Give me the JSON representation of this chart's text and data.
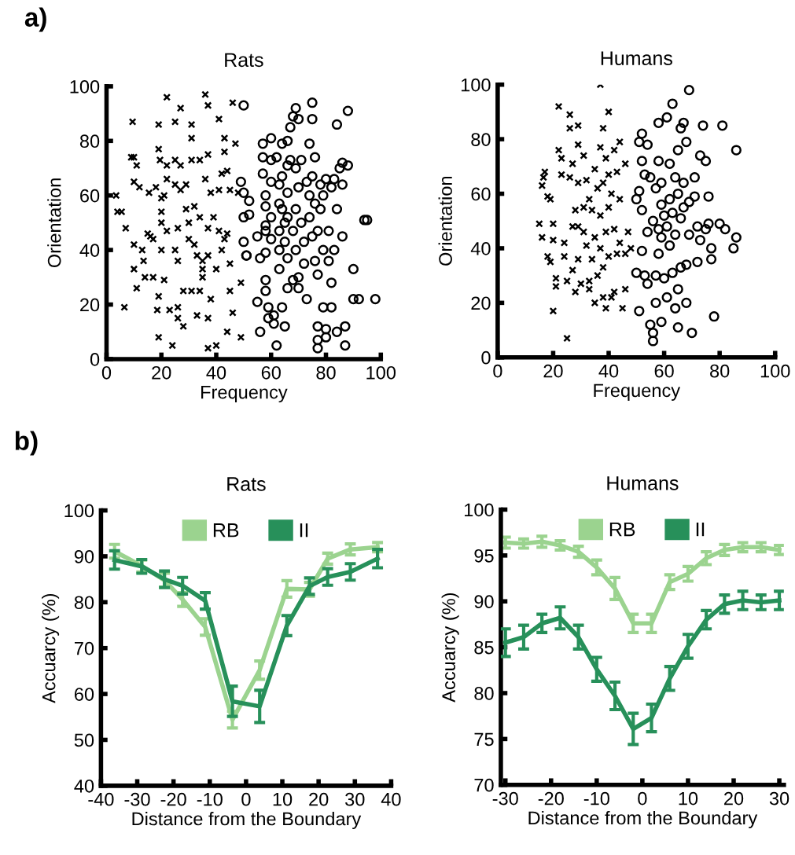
{
  "chart_data": [
    {
      "type": "scatter",
      "title": "Rats",
      "xlabel": "Frequency",
      "ylabel": "Orientation",
      "xlim": [
        0,
        100
      ],
      "ylim": [
        0,
        100
      ],
      "xticks": [
        0,
        20,
        40,
        60,
        80,
        100
      ],
      "yticks": [
        0,
        20,
        40,
        60,
        80,
        100
      ],
      "grid": false,
      "legend": false,
      "annotations": [
        "a)"
      ],
      "series": [
        {
          "color": "#000000",
          "marker": "cross",
          "x": [
            3.5,
            4,
            5.5,
            7,
            6.5,
            9.5,
            9,
            10,
            11,
            10,
            12,
            10,
            10,
            11,
            13,
            13.5,
            14,
            15,
            15.5,
            16,
            17,
            17,
            18,
            19,
            18.5,
            19,
            19,
            19,
            19.5,
            20,
            20,
            20,
            20,
            21,
            21,
            22,
            22,
            22,
            22,
            23,
            24,
            25,
            25,
            25,
            26,
            26,
            26,
            26,
            27,
            25,
            27,
            27,
            28,
            28,
            29,
            29,
            30,
            30,
            31,
            31,
            31,
            31,
            32,
            32,
            33,
            33,
            34,
            34,
            35,
            35,
            35,
            34,
            36,
            37,
            37,
            36,
            37,
            37,
            38,
            38,
            37,
            37,
            39,
            40,
            40,
            41,
            41,
            41,
            42,
            42,
            43,
            43,
            43,
            44,
            44,
            44,
            45,
            45,
            45,
            46,
            46,
            47,
            48,
            49,
            49
          ],
          "values": [
            60,
            54,
            54,
            48,
            19,
            87,
            74,
            74,
            71,
            65,
            63,
            42,
            33,
            26,
            40,
            36,
            30,
            46,
            61,
            45,
            44,
            30,
            63,
            23,
            18,
            8,
            86,
            77,
            73,
            59,
            54,
            50,
            40,
            29,
            60,
            71,
            66,
            47,
            96,
            18,
            5,
            73,
            64,
            40,
            48,
            19,
            15,
            36,
            92,
            87,
            62,
            71,
            25,
            12,
            64,
            55,
            50,
            44,
            81,
            86,
            73,
            25,
            56,
            42,
            38,
            16,
            73,
            52,
            30,
            36,
            33,
            25,
            97,
            93,
            75,
            66,
            48,
            38,
            61,
            22,
            15,
            4,
            52,
            33,
            5,
            62,
            88,
            47,
            68,
            40,
            44,
            76,
            81,
            46,
            69,
            10,
            62,
            35,
            25,
            17,
            94,
            79,
            61,
            28,
            8
          ]
        },
        {
          "color": "#000000",
          "marker": "circle",
          "x": [
            50,
            49,
            50,
            50,
            50,
            51,
            52,
            52,
            51,
            55,
            56,
            55,
            56,
            57,
            57,
            57,
            58,
            58,
            58,
            58,
            58,
            58,
            58,
            59,
            59,
            60,
            60,
            60,
            60,
            60,
            61,
            61,
            62,
            62,
            63,
            63,
            63,
            63,
            63,
            64,
            64,
            64,
            64,
            65,
            65,
            65,
            66,
            66,
            66,
            66,
            66,
            66,
            67,
            67,
            68,
            68,
            68,
            69,
            69,
            69,
            69,
            70,
            70,
            70,
            70,
            71,
            71,
            72,
            72,
            73,
            73,
            74,
            74,
            74,
            75,
            75,
            75,
            75,
            76,
            76,
            76,
            77,
            77,
            77,
            77,
            77,
            78,
            78,
            79,
            79,
            79,
            80,
            80,
            80,
            81,
            81,
            82,
            82,
            82,
            83,
            83,
            84,
            84,
            84,
            85,
            86,
            86,
            86,
            87,
            87,
            88,
            88,
            90,
            90,
            92,
            94,
            95,
            98
          ],
          "values": [
            93,
            65,
            61,
            52,
            43,
            38,
            58,
            53,
            38,
            45,
            37,
            21,
            10,
            79,
            68,
            74,
            60,
            56,
            49,
            47,
            39,
            29,
            25,
            19,
            15,
            81,
            73,
            65,
            52,
            44,
            16,
            13,
            5,
            74,
            64,
            57,
            47,
            40,
            33,
            79,
            67,
            55,
            19,
            12,
            50,
            43,
            80,
            71,
            61,
            52,
            37,
            26,
            85,
            73,
            89,
            47,
            29,
            92,
            70,
            55,
            40,
            88,
            63,
            30,
            26,
            73,
            50,
            43,
            35,
            65,
            22,
            79,
            60,
            52,
            94,
            88,
            67,
            45,
            74,
            36,
            57,
            47,
            31,
            12,
            7,
            4,
            64,
            55,
            19,
            40,
            60,
            66,
            11,
            8,
            36,
            47,
            63,
            28,
            19,
            66,
            40,
            86,
            10,
            55,
            70,
            64,
            72,
            45,
            12,
            5,
            91,
            71,
            33,
            22,
            22,
            51,
            51,
            22
          ]
        }
      ]
    },
    {
      "type": "scatter",
      "title": "Humans",
      "xlabel": "Frequency",
      "ylabel": "Orientation",
      "xlim": [
        0,
        100
      ],
      "ylim": [
        0,
        100
      ],
      "xticks": [
        0,
        20,
        40,
        60,
        80,
        100
      ],
      "yticks": [
        0,
        20,
        40,
        60,
        80,
        100
      ],
      "grid": false,
      "legend": false,
      "series": [
        {
          "color": "#000000",
          "marker": "cross",
          "x": [
            15,
            16,
            16,
            16.5,
            17,
            18,
            19,
            20,
            20,
            18,
            19,
            20,
            21,
            21,
            22,
            22,
            23,
            23,
            24,
            24,
            25,
            25,
            26,
            26,
            26,
            27,
            27,
            27,
            28,
            28,
            29,
            29,
            29,
            29,
            29,
            30,
            31,
            31,
            31,
            32,
            32,
            33,
            33,
            33,
            34,
            34,
            35,
            35,
            35,
            36,
            36,
            37,
            37,
            37,
            37,
            38,
            38,
            38,
            38,
            39,
            39,
            39,
            40,
            40,
            40,
            40,
            41,
            41,
            42,
            42,
            42,
            43,
            43,
            44,
            44,
            44,
            45,
            46,
            46,
            46,
            47,
            48
          ],
          "values": [
            49,
            44,
            63,
            66,
            68,
            59,
            58,
            49,
            43,
            37,
            35,
            17,
            29,
            26,
            76,
            92,
            73,
            67,
            42,
            37,
            7,
            28,
            89,
            84,
            66,
            71,
            48,
            32,
            54,
            24,
            85,
            78,
            64,
            48,
            36,
            27,
            74,
            55,
            46,
            65,
            41,
            58,
            28,
            25,
            54,
            36,
            69,
            44,
            20,
            62,
            30,
            100,
            77,
            52,
            40,
            84,
            64,
            33,
            22,
            73,
            46,
            18,
            90,
            67,
            55,
            37,
            60,
            22,
            76,
            47,
            24,
            68,
            38,
            79,
            58,
            42,
            18,
            71,
            25,
            38,
            46,
            40
          ]
        },
        {
          "color": "#000000",
          "marker": "circle",
          "x": [
            50,
            50,
            51,
            51,
            51,
            52,
            52,
            52,
            52,
            53,
            53,
            54,
            54,
            54,
            55,
            55,
            56,
            56,
            56,
            57,
            57,
            57,
            58,
            58,
            58,
            58,
            59,
            59,
            59,
            59,
            60,
            60,
            61,
            61,
            61,
            62,
            62,
            62,
            63,
            63,
            63,
            64,
            64,
            64,
            65,
            65,
            65,
            65,
            66,
            66,
            66,
            67,
            67,
            67,
            68,
            68,
            68,
            69,
            69,
            69,
            70,
            71,
            71,
            72,
            72,
            73,
            73,
            74,
            75,
            75,
            76,
            76,
            77,
            77,
            78,
            80,
            81,
            82,
            86,
            86,
            85
          ],
          "values": [
            58,
            31,
            61,
            17,
            79,
            82,
            72,
            54,
            39,
            67,
            30,
            78,
            46,
            27,
            66,
            12,
            50,
            9,
            6,
            62,
            30,
            20,
            86,
            72,
            47,
            38,
            64,
            56,
            44,
            13,
            52,
            29,
            88,
            48,
            22,
            71,
            58,
            41,
            93,
            53,
            31,
            66,
            45,
            18,
            76,
            60,
            25,
            11,
            84,
            51,
            33,
            86,
            64,
            55,
            79,
            34,
            20,
            57,
            98,
            45,
            9,
            66,
            59,
            48,
            35,
            74,
            43,
            85,
            72,
            47,
            49,
            59,
            40,
            36,
            15,
            49,
            85,
            47,
            76,
            44,
            40
          ]
        }
      ]
    },
    {
      "type": "line",
      "title": "Rats",
      "xlabel": "Distance from the Boundary",
      "ylabel": "Accuarcy (%)",
      "xlim": [
        -40,
        40
      ],
      "ylim": [
        40,
        100
      ],
      "xticks": [
        -40,
        -30,
        -20,
        -10,
        0,
        10,
        20,
        30,
        40
      ],
      "yticks": [
        40,
        50,
        60,
        70,
        80,
        90,
        100
      ],
      "grid": false,
      "legend": "top",
      "annotations": [
        "b)"
      ],
      "x": [
        -36.25,
        -28.75,
        -22.5,
        -17.5,
        -11.25,
        -3.75,
        3.75,
        11.25,
        17.5,
        22.5,
        28.75,
        36.25
      ],
      "series": [
        {
          "name": "RB",
          "color": "#9bd38f",
          "values": [
            91.1,
            87.9,
            84.8,
            80.6,
            74.6,
            54.4,
            65.2,
            82.9,
            82.8,
            89.5,
            91.5,
            92
          ],
          "errors": [
            1.5,
            1.3,
            1.5,
            1.5,
            1.8,
            1.8,
            2.0,
            1.8,
            1.5,
            1.2,
            1.2,
            1.0
          ]
        },
        {
          "name": "II",
          "color": "#27905a",
          "values": [
            89.2,
            87.8,
            85,
            83.6,
            80.3,
            58.4,
            57.3,
            74.9,
            83.5,
            85.5,
            86.6,
            89.5
          ],
          "errors": [
            2,
            1.5,
            1.8,
            1.8,
            1.8,
            3.3,
            3.5,
            2.2,
            1.8,
            1.8,
            1.8,
            2.0
          ]
        }
      ]
    },
    {
      "type": "line",
      "title": "Humans",
      "xlabel": "Distance from the Boundary",
      "ylabel": "Accuarcy (%)",
      "xlim": [
        -31,
        31
      ],
      "ylim": [
        70,
        100
      ],
      "xticks": [
        -30,
        -20,
        -10,
        0,
        10,
        20,
        30
      ],
      "yticks": [
        70,
        75,
        80,
        85,
        90,
        95,
        100
      ],
      "grid": false,
      "legend": "top",
      "x": [
        -30,
        -26,
        -22,
        -18,
        -14,
        -10,
        -6,
        -2,
        2,
        6,
        10,
        14,
        18,
        22,
        26,
        30
      ],
      "series": [
        {
          "name": "RB",
          "color": "#9bd38f",
          "values": [
            96.4,
            96.3,
            96.5,
            96.1,
            95.4,
            93.7,
            91.4,
            87.6,
            87.6,
            92.1,
            93.0,
            94.7,
            95.6,
            95.9,
            95.9,
            95.6
          ],
          "errors": [
            0.6,
            0.5,
            0.6,
            0.5,
            0.6,
            0.8,
            1.2,
            1.0,
            1.0,
            0.8,
            0.8,
            0.7,
            0.6,
            0.5,
            0.5,
            0.5
          ]
        },
        {
          "name": "II",
          "color": "#27905a",
          "values": [
            85.5,
            86.1,
            87.6,
            88.2,
            86.1,
            82.6,
            79.7,
            76.1,
            77.3,
            81.6,
            85.1,
            88.0,
            89.7,
            90.1,
            89.9,
            90.1
          ],
          "errors": [
            1.5,
            1.3,
            1.0,
            1.2,
            1.3,
            1.3,
            1.5,
            1.7,
            1.5,
            1.3,
            1.3,
            1.0,
            1.0,
            1.0,
            0.8,
            1.0
          ]
        }
      ]
    }
  ]
}
